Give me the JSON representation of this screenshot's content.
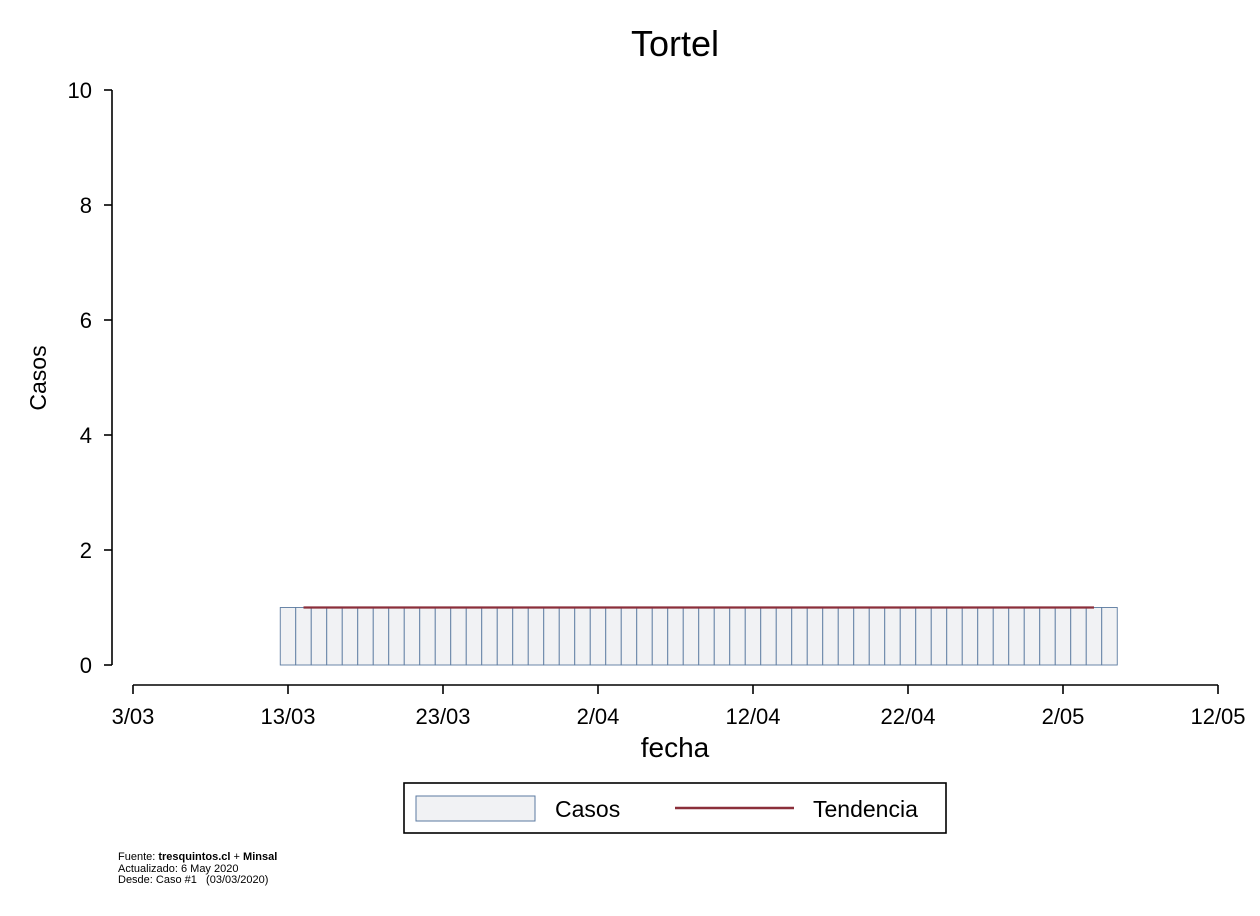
{
  "chart_data": {
    "type": "bar",
    "title": "Tortel",
    "xlabel": "fecha",
    "ylabel": "Casos",
    "ylim": [
      0,
      10
    ],
    "yticks": [
      0,
      2,
      4,
      6,
      8,
      10
    ],
    "xlim": [
      "2020-03-03",
      "2020-05-12"
    ],
    "xticks": [
      "2020-03-03",
      "2020-03-13",
      "2020-03-23",
      "2020-04-02",
      "2020-04-12",
      "2020-04-22",
      "2020-05-02",
      "2020-05-12"
    ],
    "xtick_labels": [
      "3/03",
      "13/03",
      "23/03",
      "2/04",
      "12/04",
      "22/04",
      "2/05",
      "12/05"
    ],
    "grid": false,
    "legend_position": "bottom",
    "series": [
      {
        "name": "Casos",
        "type": "bar",
        "color": "#f1f2f4",
        "edge_color": "#5b7aa0",
        "start": "2020-03-13",
        "end": "2020-05-05",
        "values": [
          1,
          1,
          1,
          1,
          1,
          1,
          1,
          1,
          1,
          1,
          1,
          1,
          1,
          1,
          1,
          1,
          1,
          1,
          1,
          1,
          1,
          1,
          1,
          1,
          1,
          1,
          1,
          1,
          1,
          1,
          1,
          1,
          1,
          1,
          1,
          1,
          1,
          1,
          1,
          1,
          1,
          1,
          1,
          1,
          1,
          1,
          1,
          1,
          1,
          1,
          1,
          1,
          1,
          1
        ]
      },
      {
        "name": "Tendencia",
        "type": "line",
        "color": "#8b2f3a",
        "start": "2020-03-14",
        "end": "2020-05-04",
        "values": [
          1,
          1
        ]
      }
    ]
  },
  "footer": {
    "source_label": "Fuente: ",
    "source_a": "tresquintos.cl",
    "source_plus": " + ",
    "source_b": "Minsal",
    "updated": "Actualizado: 6 May 2020",
    "since": "Desde: Caso #1   (03/03/2020)"
  }
}
